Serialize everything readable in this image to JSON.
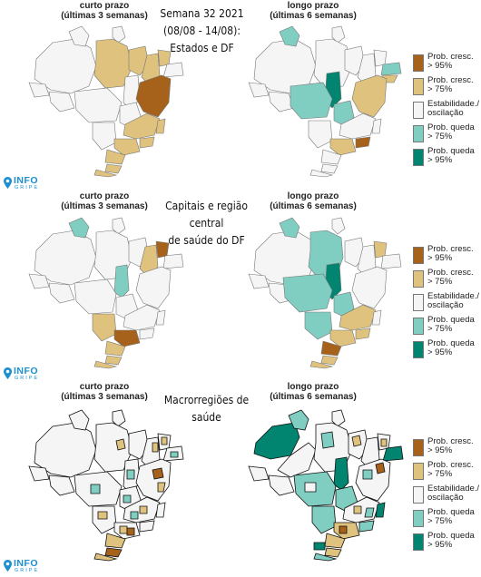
{
  "header": {
    "title_lines": [
      "Semana 32 2021",
      "(08/08 - 14/08):",
      "Estados e DF"
    ]
  },
  "sections": [
    {
      "left_title": [
        "curto prazo",
        "(últimas 3 semanas)"
      ],
      "right_title": [
        "longo prazo",
        "(últimas 6 semanas)"
      ]
    },
    {
      "left_title": [
        "curto prazo",
        "(últimas 3 semanas)"
      ],
      "right_title": [
        "longo prazo",
        "(últimas 6 semanas)"
      ],
      "center_title": [
        "Capitais e região central",
        "de saúde do DF"
      ]
    },
    {
      "left_title": [
        "curto prazo",
        "(últimas 3 semanas)"
      ],
      "right_title": [
        "longo prazo",
        "(últimas 6 semanas)"
      ],
      "center_title": [
        "Macrorregiões de saúde"
      ]
    }
  ],
  "legend": [
    {
      "label_lines": [
        "Prob. cresc.",
        "> 95%"
      ],
      "color": "#a6611a"
    },
    {
      "label_lines": [
        "Prob. cresc.",
        "> 75%"
      ],
      "color": "#dfc27d"
    },
    {
      "label_lines": [
        "Estabilidade./",
        "oscilação"
      ],
      "color": "#f5f5f5"
    },
    {
      "label_lines": [
        "Prob. queda",
        "> 75%"
      ],
      "color": "#80cdc1"
    },
    {
      "label_lines": [
        "Prob. queda",
        "> 95%"
      ],
      "color": "#018571"
    }
  ],
  "logo": {
    "text": "INFO",
    "subtext": "GRIPE",
    "color": "#1b8fd0"
  },
  "colors": {
    "strong_up": "#a6611a",
    "up": "#dfc27d",
    "stable": "#f5f5f5",
    "down": "#80cdc1",
    "strong_down": "#018571",
    "border": "#777777"
  }
}
